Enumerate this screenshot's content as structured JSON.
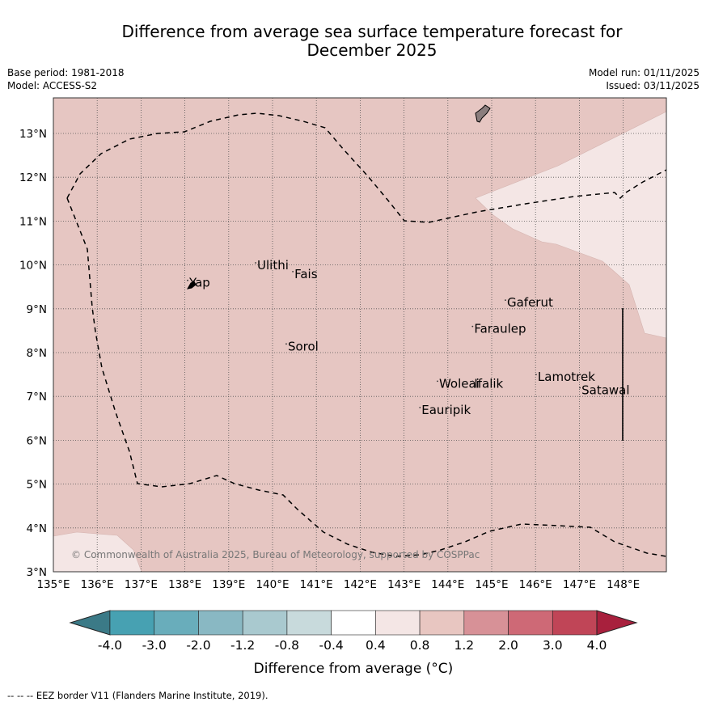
{
  "header": {
    "title_line1": "Difference from average sea surface temperature forecast for",
    "title_line2": "December 2025",
    "base_period": "Base period: 1981-2018",
    "model": "Model: ACCESS-S2",
    "model_run": "Model run: 01/11/2025",
    "issued": "Issued: 03/11/2025"
  },
  "map": {
    "lon_range": [
      135,
      149
    ],
    "lat_range": [
      3,
      13.8
    ],
    "lon_ticks": [
      "135°E",
      "136°E",
      "137°E",
      "138°E",
      "139°E",
      "140°E",
      "141°E",
      "142°E",
      "143°E",
      "144°E",
      "145°E",
      "146°E",
      "147°E",
      "148°E"
    ],
    "lat_ticks": [
      "3°N",
      "4°N",
      "5°N",
      "6°N",
      "7°N",
      "8°N",
      "9°N",
      "10°N",
      "11°N",
      "12°N",
      "13°N"
    ],
    "places": [
      {
        "name": "Yap",
        "lon": 138.1,
        "lat": 9.5
      },
      {
        "name": "Ulithi",
        "lon": 139.65,
        "lat": 9.9
      },
      {
        "name": "Fais",
        "lon": 140.5,
        "lat": 9.7
      },
      {
        "name": "Gaferut",
        "lon": 145.35,
        "lat": 9.05
      },
      {
        "name": "Faraulep",
        "lon": 144.6,
        "lat": 8.45
      },
      {
        "name": "Sorol",
        "lon": 140.35,
        "lat": 8.05
      },
      {
        "name": "Lamotrek",
        "lon": 146.05,
        "lat": 7.35
      },
      {
        "name": "Woleai",
        "lon": 143.8,
        "lat": 7.2
      },
      {
        "name": "Ifalik",
        "lon": 144.6,
        "lat": 7.2
      },
      {
        "name": "Satawal",
        "lon": 147.05,
        "lat": 7.05
      },
      {
        "name": "Eauripik",
        "lon": 143.4,
        "lat": 6.6
      }
    ],
    "copyright": "© Commonwealth of Australia 2025, Bureau of Meteorology, supported by COSPPac"
  },
  "legend": {
    "ticks": [
      "-4.0",
      "-3.0",
      "-2.0",
      "-1.2",
      "-0.8",
      "-0.4",
      "0.4",
      "0.8",
      "1.2",
      "2.0",
      "3.0",
      "4.0"
    ],
    "colors": [
      "#3b7a87",
      "#47a1b2",
      "#69adbb",
      "#89b8c3",
      "#a9c9cf",
      "#c8dadc",
      "#ffffff",
      "#f4e6e5",
      "#e8c6c1",
      "#d79197",
      "#ce6976",
      "#c04557",
      "#a8203d"
    ],
    "label": "Difference from average (°C)"
  },
  "colors": {
    "main_fill": "#e6c6c2",
    "light_fill": "#f4e6e5"
  },
  "footer": {
    "eez_note": "--  --  -- EEZ border V11 (Flanders Marine Institute, 2019)."
  }
}
